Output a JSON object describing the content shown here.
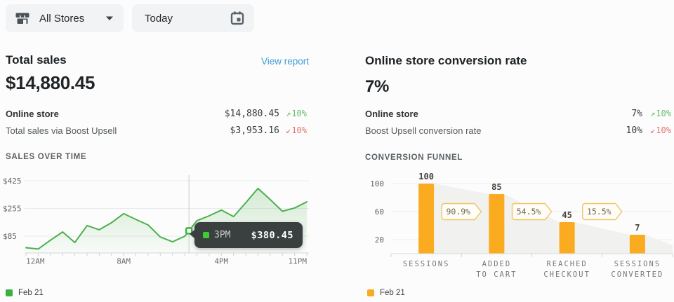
{
  "topbar": {
    "store_selector": {
      "label": "All Stores"
    },
    "date_selector": {
      "label": "Today"
    }
  },
  "left_panel": {
    "title": "Total sales",
    "view_report": "View report",
    "big_value": "$14,880.45",
    "rows": [
      {
        "label": "Online store",
        "value": "$14,880.45",
        "arrow": "↗",
        "change": "10%",
        "direction": "up"
      },
      {
        "label": "Total sales via Boost Upsell",
        "value": "$3,953.16",
        "arrow": "↙",
        "change": "10%",
        "direction": "down"
      }
    ],
    "section_title": "SALES OVER TIME"
  },
  "right_panel": {
    "title": "Online store conversion rate",
    "big_value": "7%",
    "rows": [
      {
        "label": "Online store",
        "value": "7%",
        "arrow": "↗",
        "change": "10%",
        "direction": "up"
      },
      {
        "label": "Boost Upsell conversion rate",
        "value": "10%",
        "arrow": "↙",
        "change": "10%",
        "direction": "down"
      }
    ],
    "section_title": "CONVERSION FUNNEL"
  },
  "colors": {
    "accent_green": "#4cb04c",
    "accent_orange": "#fbab1f",
    "link_blue": "#3f9bd8",
    "change_up": "#6cbb6c",
    "change_down": "#e2756b",
    "tooltip_bg": "#3a403f"
  },
  "chart_data": [
    {
      "type": "line",
      "title": "Sales over time",
      "x_unit": "hour of day",
      "series": [
        {
          "name": "Feb 21",
          "color": "#4cb04c",
          "values": [
            14,
            6,
            60,
            111,
            46,
            150,
            124,
            167,
            223,
            188,
            154,
            80,
            50,
            84,
            180,
            210,
            245,
            205,
            290,
            378,
            310,
            238,
            258,
            296
          ]
        }
      ],
      "x_tick_labels": [
        {
          "hour": 0,
          "label": "12AM",
          "anchor": "start"
        },
        {
          "hour": 8,
          "label": "8AM",
          "anchor": "middle"
        },
        {
          "hour": 16,
          "label": "4PM",
          "anchor": "middle"
        },
        {
          "hour": 23,
          "label": "11PM",
          "anchor": "end"
        }
      ],
      "y_ticks": [
        {
          "value": 425,
          "label": "$425"
        },
        {
          "value": 255,
          "label": "$255"
        },
        {
          "value": 85,
          "label": "$85"
        }
      ],
      "ylim": [
        0,
        460
      ],
      "grid": true,
      "crosshair_hour": 13.35,
      "tooltip": {
        "time": "3PM",
        "value": "$380.45",
        "swatch_color": "#3ecb33"
      },
      "legend": {
        "label": "Feb 21",
        "color": "#3fae3f",
        "position": "bottom-left"
      }
    },
    {
      "type": "bar",
      "title": "Conversion funnel",
      "categories": [
        [
          "SESSIONS"
        ],
        [
          "ADDED",
          "TO CART"
        ],
        [
          "REACHED",
          "CHECKOUT"
        ],
        [
          "SESSIONS",
          "CONVERTED"
        ]
      ],
      "values": [
        100,
        85,
        45,
        7
      ],
      "bar_color": "#fbab1f",
      "conversion_badges": [
        "90.9%",
        "54.5%",
        "15.5%"
      ],
      "y_ticks": [
        100,
        60,
        20
      ],
      "ylim": [
        0,
        105
      ],
      "grid": true,
      "legend": {
        "label": "Feb 21",
        "color": "#fbab1f",
        "position": "bottom-left"
      }
    }
  ]
}
